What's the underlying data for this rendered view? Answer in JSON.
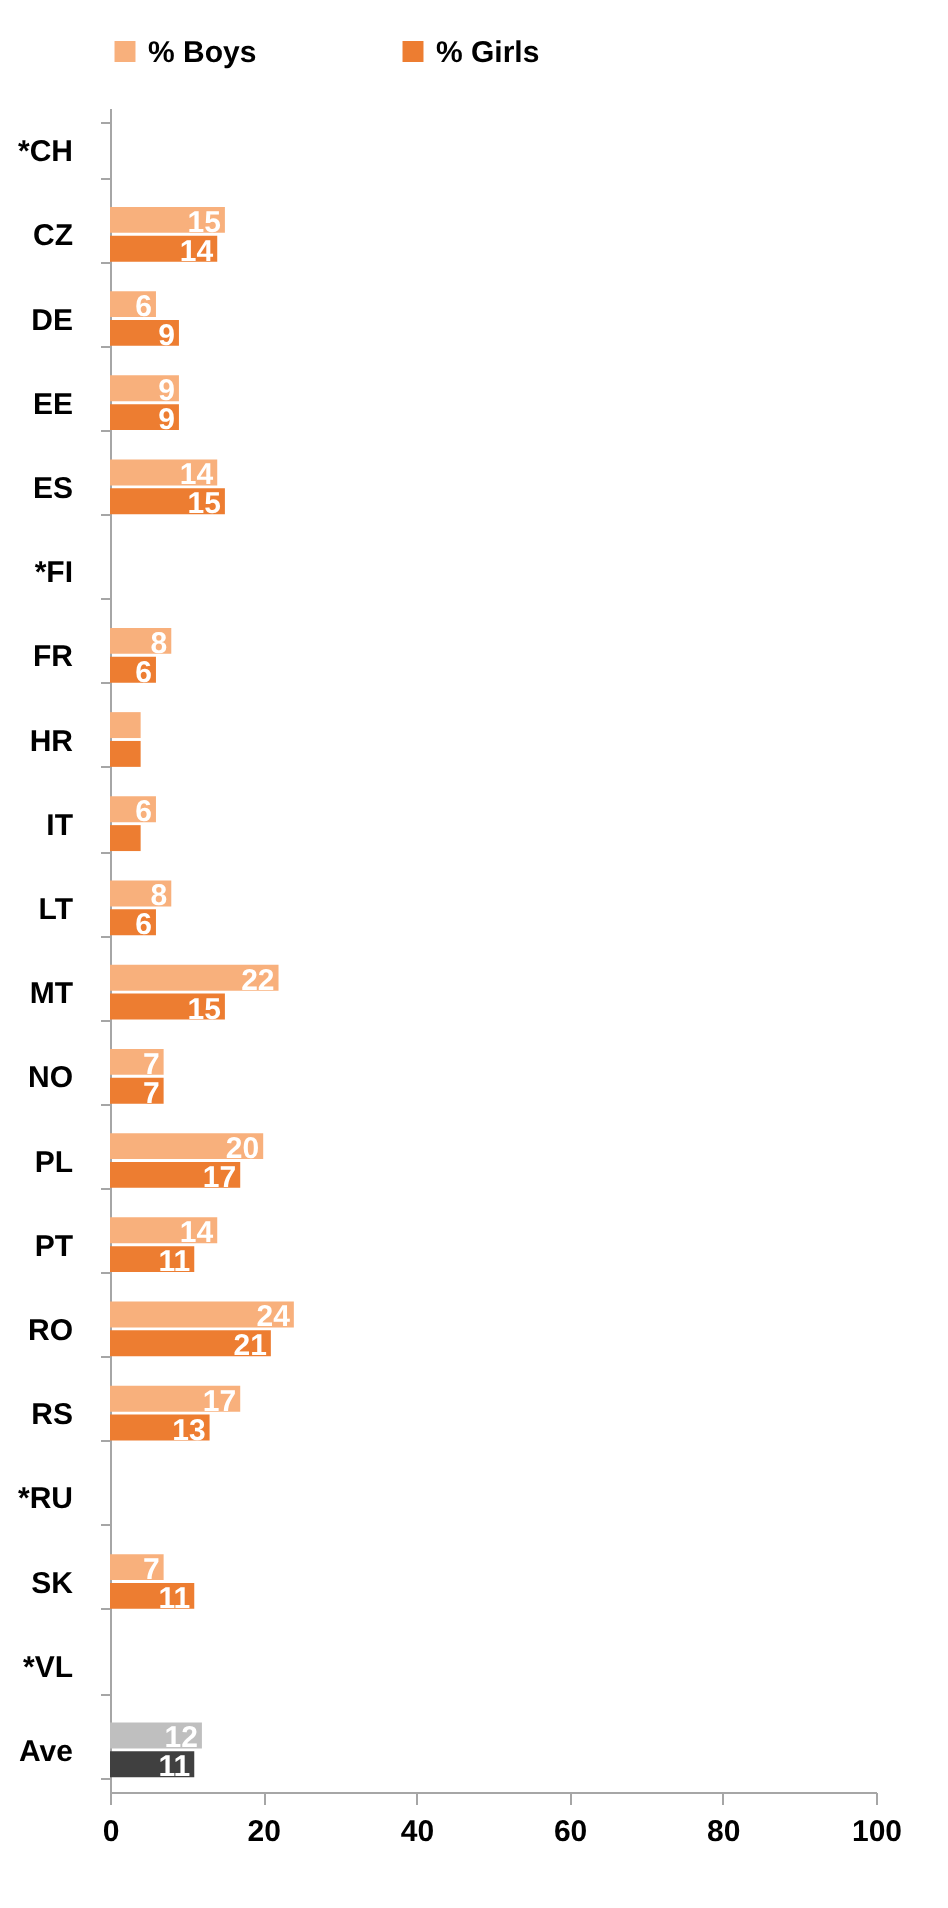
{
  "chart_data": {
    "type": "bar",
    "orientation": "horizontal",
    "legend": "top",
    "grid": false,
    "categories": [
      "*CH",
      "CZ",
      "DE",
      "EE",
      "ES",
      "*FI",
      "FR",
      "HR",
      "IT",
      "LT",
      "MT",
      "NO",
      "PL",
      "PT",
      "RO",
      "RS",
      "*RU",
      "SK",
      "*VL",
      "Ave"
    ],
    "xlim": [
      0,
      100
    ],
    "xticks": [
      0,
      20,
      40,
      60,
      80,
      100
    ],
    "series": [
      {
        "name": "% Boys",
        "color": "#f8b07c",
        "colors": [
          "#f8b07c",
          "#f8b07c",
          "#f8b07c",
          "#f8b07c",
          "#f8b07c",
          "#f8b07c",
          "#f8b07c",
          "#f8b07c",
          "#f8b07c",
          "#f8b07c",
          "#f8b07c",
          "#f8b07c",
          "#f8b07c",
          "#f8b07c",
          "#f8b07c",
          "#f8b07c",
          "#f8b07c",
          "#f8b07c",
          "#f8b07c",
          "#bfbfbf"
        ],
        "values": [
          null,
          15,
          6,
          9,
          14,
          null,
          8,
          4,
          6,
          8,
          22,
          7,
          20,
          14,
          24,
          17,
          null,
          7,
          null,
          12
        ],
        "value_labels": [
          null,
          "15",
          "6",
          "9",
          "14",
          null,
          "8",
          null,
          "6",
          "8",
          "22",
          "7",
          "20",
          "14",
          "24",
          "17",
          null,
          "7",
          null,
          "12"
        ]
      },
      {
        "name": "% Girls",
        "color": "#ed7d31",
        "colors": [
          "#ed7d31",
          "#ed7d31",
          "#ed7d31",
          "#ed7d31",
          "#ed7d31",
          "#ed7d31",
          "#ed7d31",
          "#ed7d31",
          "#ed7d31",
          "#ed7d31",
          "#ed7d31",
          "#ed7d31",
          "#ed7d31",
          "#ed7d31",
          "#ed7d31",
          "#ed7d31",
          "#ed7d31",
          "#ed7d31",
          "#ed7d31",
          "#404040"
        ],
        "values": [
          null,
          14,
          9,
          9,
          15,
          null,
          6,
          4,
          4,
          6,
          15,
          7,
          17,
          11,
          21,
          13,
          null,
          11,
          null,
          11
        ],
        "value_labels": [
          null,
          "14",
          "9",
          "9",
          "15",
          null,
          "6",
          null,
          null,
          "6",
          "15",
          "7",
          "17",
          "11",
          "21",
          "13",
          null,
          "11",
          null,
          "11"
        ]
      }
    ]
  }
}
